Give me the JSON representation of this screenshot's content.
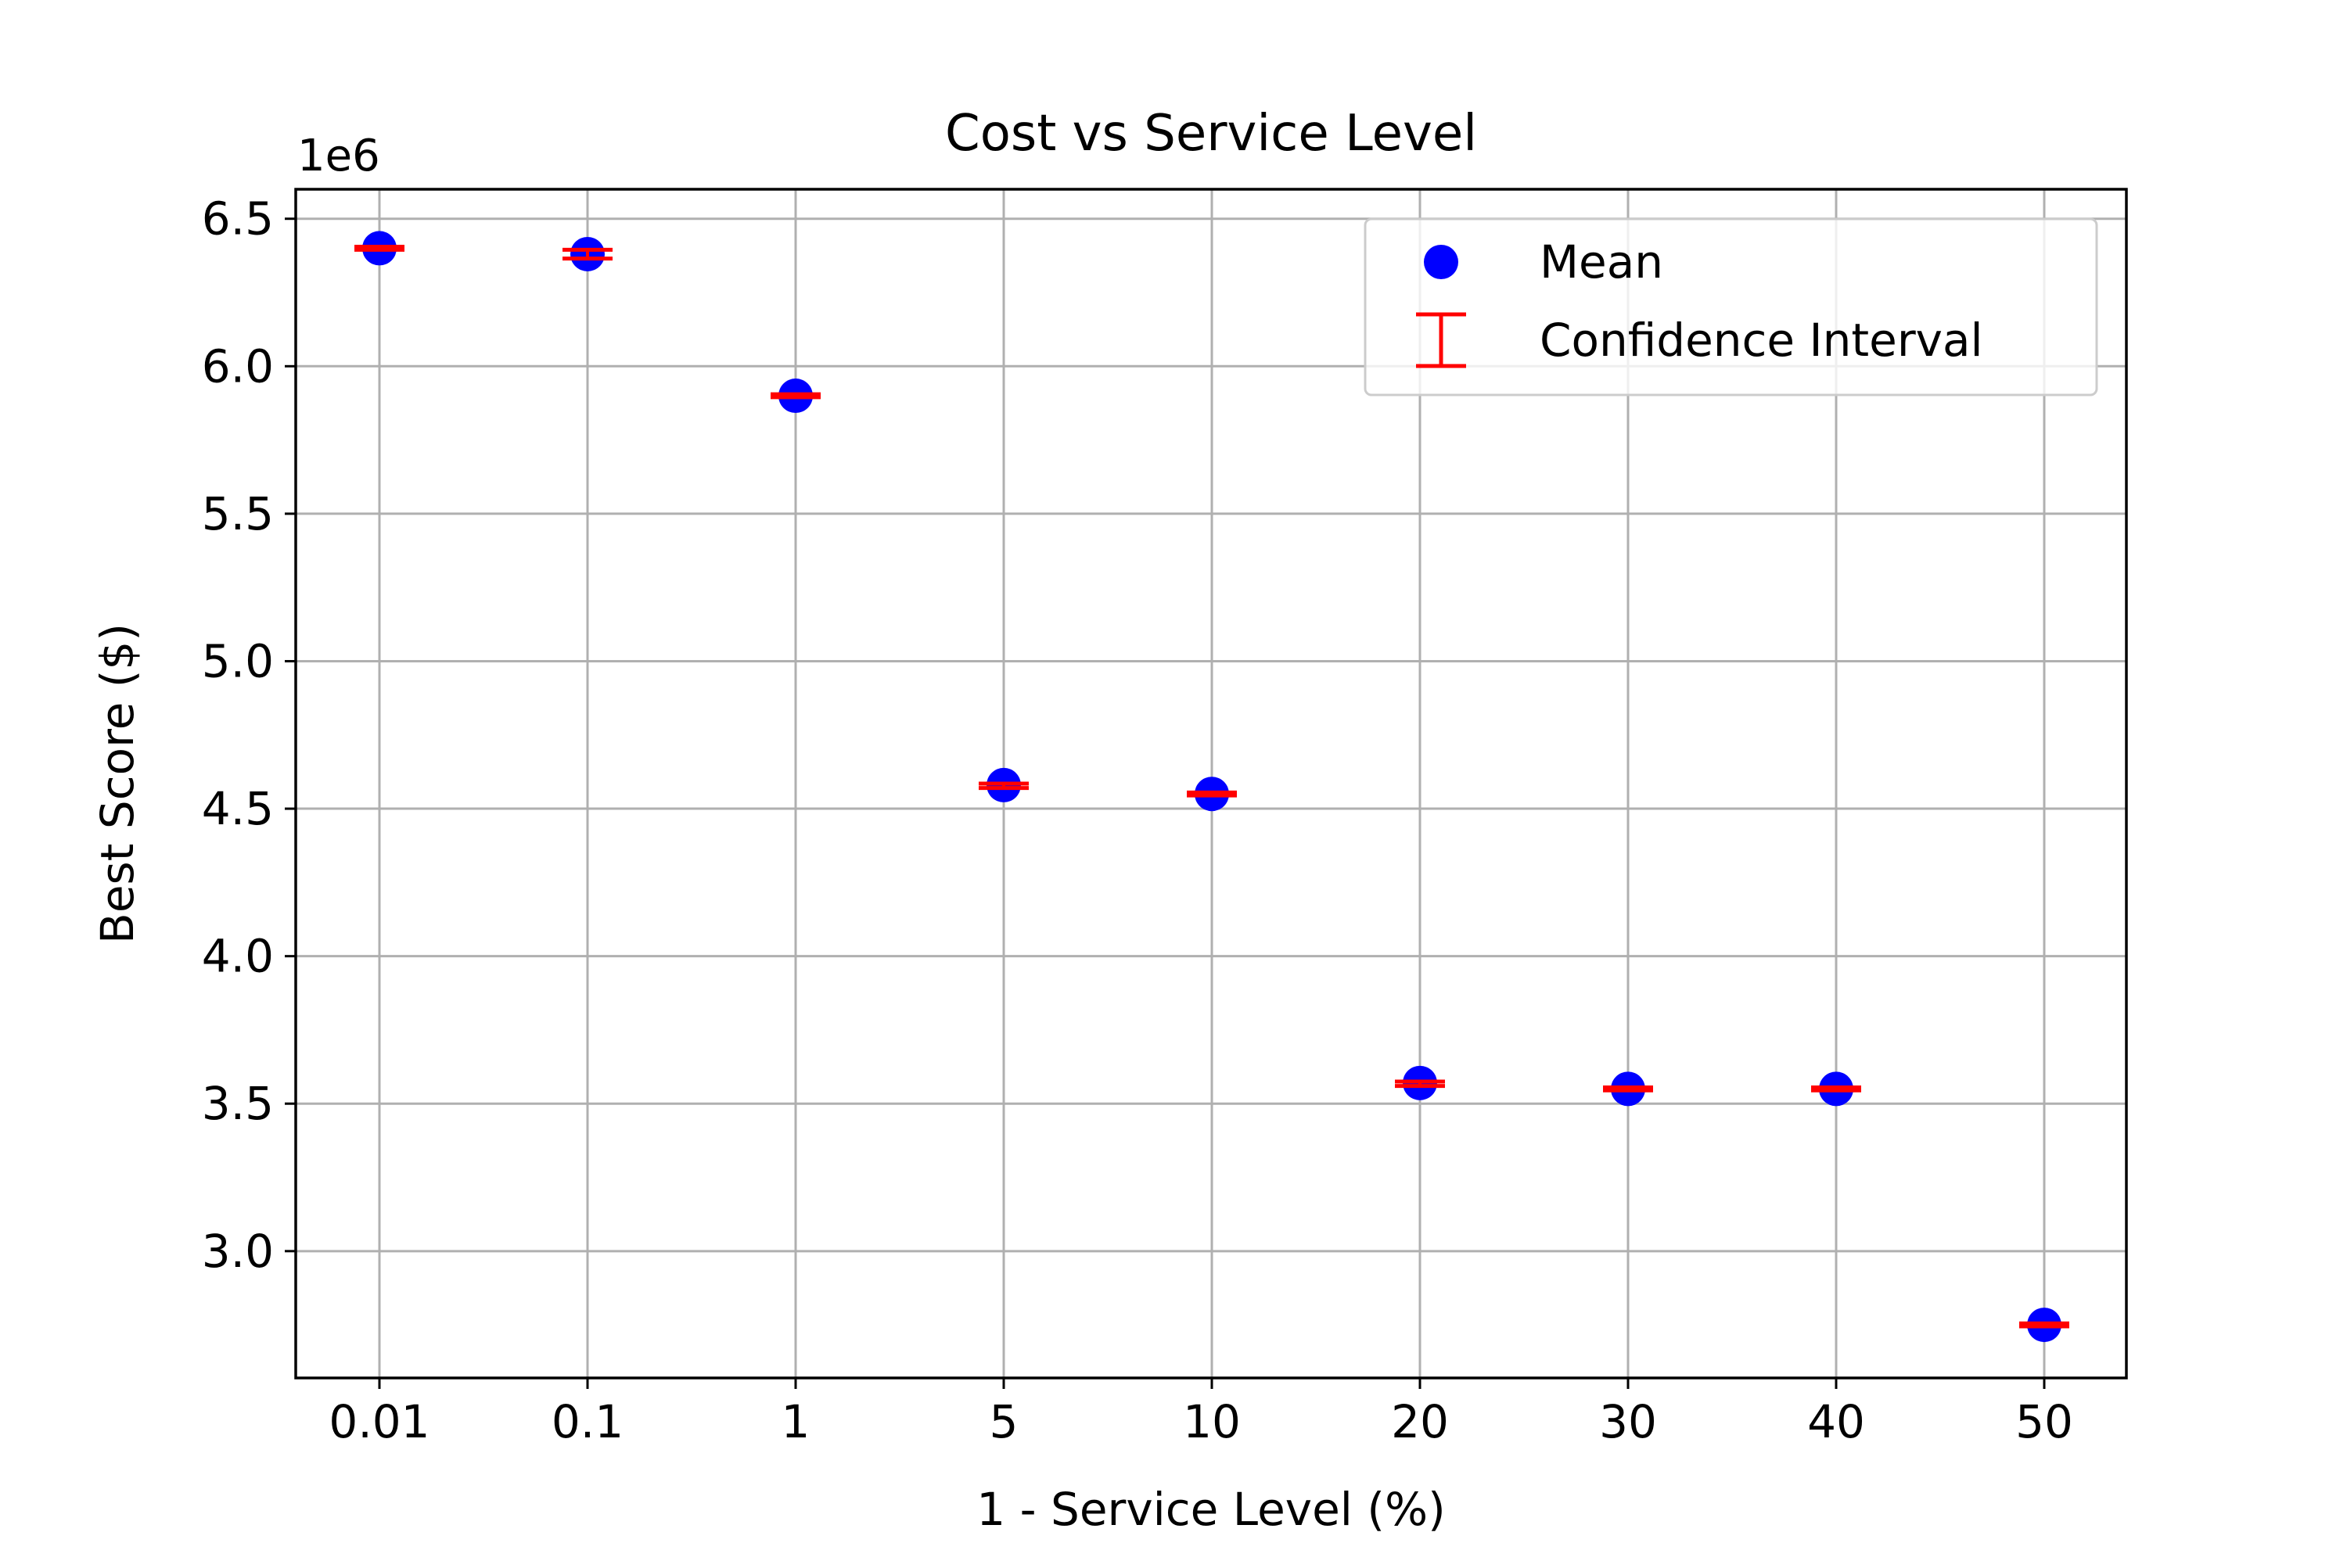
{
  "chart_data": {
    "type": "scatter",
    "title": "Cost vs Service Level",
    "xlabel": "1 - Service Level (%)",
    "ylabel": "Best Score ($)",
    "y_offset_label": "1e6",
    "categories": [
      "0.01",
      "0.1",
      "1",
      "5",
      "10",
      "20",
      "30",
      "40",
      "50"
    ],
    "ylim": [
      2.57,
      6.6
    ],
    "yticks": [
      "3.0",
      "3.5",
      "4.0",
      "4.5",
      "5.0",
      "5.5",
      "6.0",
      "6.5"
    ],
    "ytick_values": [
      3.0,
      3.5,
      4.0,
      4.5,
      5.0,
      5.5,
      6.0,
      6.5
    ],
    "grid": true,
    "legend_position": "top-right",
    "series": [
      {
        "name": "Mean",
        "marker": "circle",
        "color": "#0000ff",
        "values": [
          6.4,
          6.38,
          5.9,
          4.58,
          4.55,
          3.57,
          3.55,
          3.55,
          2.75
        ]
      },
      {
        "name": "Confidence Interval",
        "marker": "errorbar",
        "color": "#ff0000",
        "lower": [
          6.395,
          6.365,
          5.895,
          4.57,
          4.545,
          3.56,
          3.545,
          3.545,
          2.745
        ],
        "upper": [
          6.405,
          6.395,
          5.905,
          4.585,
          4.555,
          3.575,
          3.555,
          3.555,
          2.755
        ]
      }
    ]
  }
}
